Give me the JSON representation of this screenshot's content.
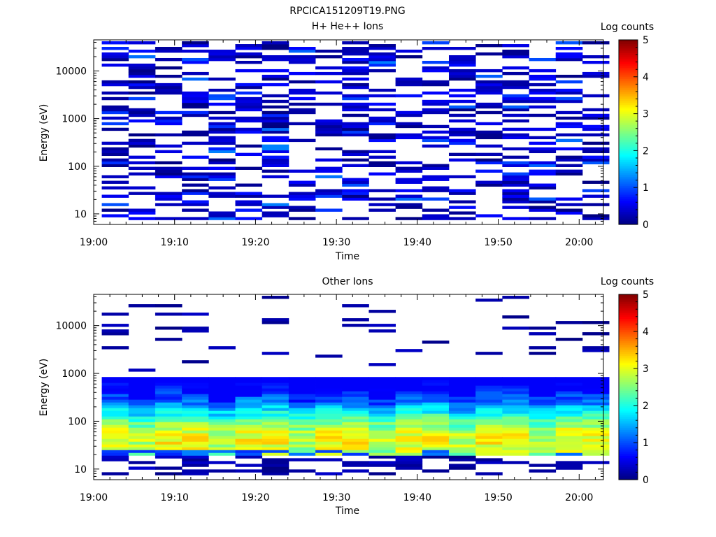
{
  "figure_title": "RPCICA151209T19.PNG",
  "chart_data": [
    {
      "type": "heatmap",
      "title": "H+ He++ Ions",
      "xlabel": "Time",
      "ylabel": "Energy (eV)",
      "x_ticks": [
        "19:00",
        "19:10",
        "19:20",
        "19:30",
        "19:40",
        "19:50",
        "20:00"
      ],
      "xlim": [
        "19:00",
        "20:03"
      ],
      "y_scale": "log",
      "ylim": [
        6,
        45000
      ],
      "y_ticks": [
        10,
        100,
        1000,
        10000
      ],
      "y_tick_labels": [
        "10",
        "100",
        "1000",
        "10000"
      ],
      "colorbar": {
        "label": "Log counts",
        "range": [
          0,
          5
        ],
        "ticks": [
          "0",
          "1",
          "2",
          "3",
          "4",
          "5"
        ],
        "colormap": "jet"
      },
      "time_bins": 19,
      "energy_range_eV": [
        7.5,
        42000
      ],
      "pattern": "sparse, mostly low log counts (about 0 to 1) scattered across all energies",
      "seed": 7,
      "low_dropout": 0.55
    },
    {
      "type": "heatmap",
      "title": "Other Ions",
      "xlabel": "Time",
      "ylabel": "Energy (eV)",
      "x_ticks": [
        "19:00",
        "19:10",
        "19:20",
        "19:30",
        "19:40",
        "19:50",
        "20:00"
      ],
      "xlim": [
        "19:00",
        "20:03"
      ],
      "y_scale": "log",
      "ylim": [
        6,
        45000
      ],
      "y_ticks": [
        10,
        100,
        1000,
        10000
      ],
      "y_tick_labels": [
        "10",
        "100",
        "1000",
        "10000"
      ],
      "colorbar": {
        "label": "Log counts",
        "range": [
          0,
          5
        ],
        "ticks": [
          "0",
          "1",
          "2",
          "3",
          "4",
          "5"
        ],
        "colormap": "jet"
      },
      "time_bins": 19,
      "energy_range_eV": [
        7.5,
        42000
      ],
      "pattern": "dense band from about 20 to 800 eV peaking near 40 eV (log counts up to about 3), sparse weak lines above",
      "band_eV": [
        20,
        800
      ],
      "peak_eV": 40,
      "peak_log_counts": 3.1,
      "seed": 23
    }
  ]
}
